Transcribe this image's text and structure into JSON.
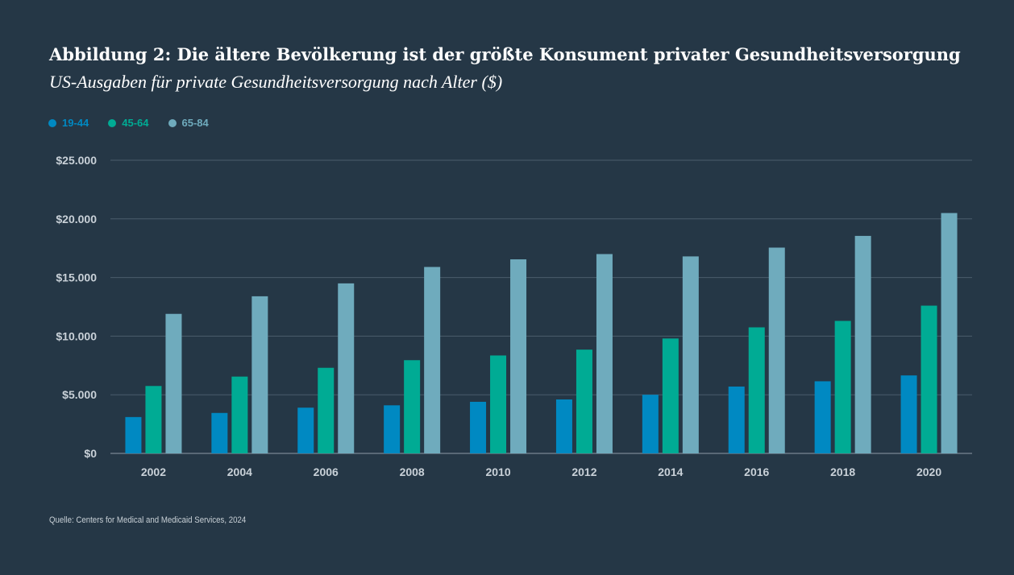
{
  "title": "Abbildung 2: Die ältere Bevölkerung ist der größte Konsument privater Gesundheitsversorgung",
  "subtitle": "US-Ausgaben für private Gesundheitsversorgung nach Alter ($)",
  "source": "Quelle: Centers for Medical and Medicaid Services, 2024",
  "chart_data": {
    "type": "bar",
    "categories": [
      "2002",
      "2004",
      "2006",
      "2008",
      "2010",
      "2012",
      "2014",
      "2016",
      "2018",
      "2020"
    ],
    "series": [
      {
        "name": "19-44",
        "color": "#0089c2",
        "values": [
          3100,
          3450,
          3900,
          4100,
          4400,
          4600,
          5000,
          5700,
          6150,
          6650
        ]
      },
      {
        "name": "45-64",
        "color": "#00ab94",
        "values": [
          5750,
          6550,
          7300,
          7950,
          8350,
          8850,
          9800,
          10750,
          11300,
          12600
        ]
      },
      {
        "name": "65-84",
        "color": "#6fabbd",
        "values": [
          11900,
          13400,
          14500,
          15900,
          16550,
          17000,
          16800,
          17550,
          18550,
          20500
        ]
      }
    ],
    "ylim": [
      0,
      25000
    ],
    "yticks": [
      0,
      5000,
      10000,
      15000,
      20000,
      25000
    ],
    "ytick_labels": [
      "$0",
      "$5.000",
      "$10.000",
      "$15.000",
      "$20.000",
      "$25.000"
    ],
    "grid": true,
    "legend_position": "top-left"
  }
}
